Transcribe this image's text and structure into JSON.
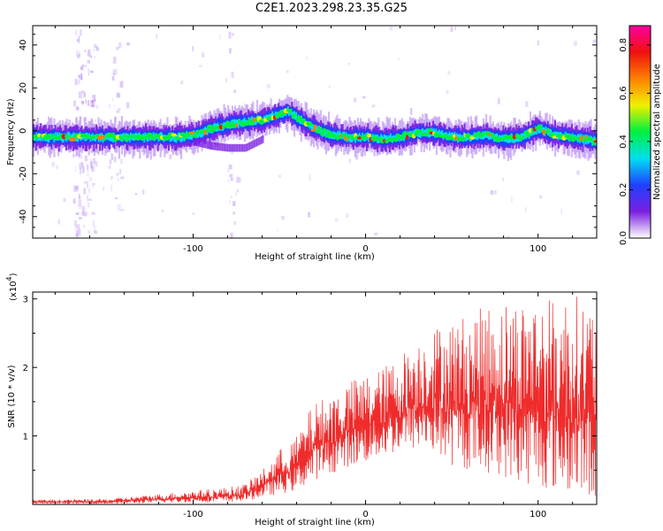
{
  "figure_title": "C2E1.2023.298.23.35.G25",
  "chart_data": [
    {
      "type": "heatmap",
      "xlabel": "Height of straight line (km)",
      "ylabel": "Frequency (Hz)",
      "xlim": [
        -193,
        134
      ],
      "ylim": [
        -50,
        49
      ],
      "x_ticks": [
        -100,
        0,
        100
      ],
      "x_tick_labels": [
        "-100",
        "0",
        "100"
      ],
      "y_ticks": [
        -40,
        -20,
        0,
        20,
        40
      ],
      "y_tick_labels": [
        "-40",
        "-20",
        "0",
        "20",
        "40"
      ],
      "colorbar": {
        "label": "Normalized spectral amplitude",
        "range": [
          0.0,
          0.88
        ],
        "ticks": [
          0.0,
          0.2,
          0.4,
          0.6,
          0.8
        ],
        "tick_labels": [
          "0.0",
          "0.2",
          "0.4",
          "0.6",
          "0.8"
        ],
        "colormap": [
          "#ffffff",
          "#7b1fe0",
          "#2040ff",
          "#00e0f0",
          "#00f040",
          "#f0f000",
          "#ff8000",
          "#f01010",
          "#ff00a0"
        ]
      },
      "ridge": {
        "x": [
          -193,
          -170,
          -150,
          -130,
          -110,
          -100,
          -90,
          -80,
          -70,
          -60,
          -50,
          -45,
          -40,
          -30,
          -20,
          -10,
          0,
          10,
          20,
          30,
          40,
          50,
          60,
          70,
          80,
          90,
          100,
          110,
          120,
          134
        ],
        "freq": [
          -3,
          -3,
          -3,
          -3,
          -3,
          -2,
          1,
          3,
          4,
          5,
          8,
          9,
          6,
          1,
          -2,
          -3,
          -3,
          -4,
          -3,
          -1,
          -1,
          -3,
          -3,
          -2,
          -4,
          -3,
          1,
          -2,
          -3,
          -5
        ]
      },
      "secondary_ridge": {
        "x": [
          -100,
          -90,
          -80,
          -70,
          -60
        ],
        "freq": [
          -5,
          -7,
          -8,
          -8,
          -4
        ]
      },
      "grid": false
    },
    {
      "type": "line",
      "series": [
        {
          "color": "#ef2b2b"
        }
      ],
      "xlabel": "Height of straight line (km)",
      "ylabel": "SNR (10 * v/v)",
      "y_multiplier_label": "(x10",
      "y_multiplier_exponent": "4",
      "xlim": [
        -193,
        134
      ],
      "ylim": [
        0,
        3.1
      ],
      "x_ticks": [
        -100,
        0,
        100
      ],
      "x_tick_labels": [
        "-100",
        "0",
        "100"
      ],
      "y_ticks": [
        1,
        2,
        3
      ],
      "y_tick_labels": [
        "1",
        "2",
        "3"
      ],
      "envelope": {
        "x": [
          -193,
          -150,
          -100,
          -80,
          -70,
          -60,
          -50,
          -40,
          -30,
          -20,
          -10,
          0,
          10,
          20,
          30,
          40,
          50,
          60,
          70,
          80,
          90,
          100,
          110,
          120,
          134
        ],
        "low": [
          0.01,
          0.01,
          0.03,
          0.03,
          0.05,
          0.1,
          0.15,
          0.2,
          0.35,
          0.45,
          0.55,
          0.6,
          0.7,
          0.75,
          0.8,
          0.75,
          0.55,
          0.5,
          0.45,
          0.4,
          0.3,
          0.25,
          0.2,
          0.15,
          0.1
        ],
        "high": [
          0.07,
          0.08,
          0.2,
          0.25,
          0.3,
          0.5,
          0.8,
          1.0,
          1.5,
          1.6,
          1.8,
          1.9,
          2.0,
          2.2,
          2.4,
          2.6,
          2.7,
          2.8,
          2.9,
          3.0,
          3.0,
          3.05,
          3.0,
          3.1,
          2.9
        ]
      },
      "grid": false
    }
  ]
}
